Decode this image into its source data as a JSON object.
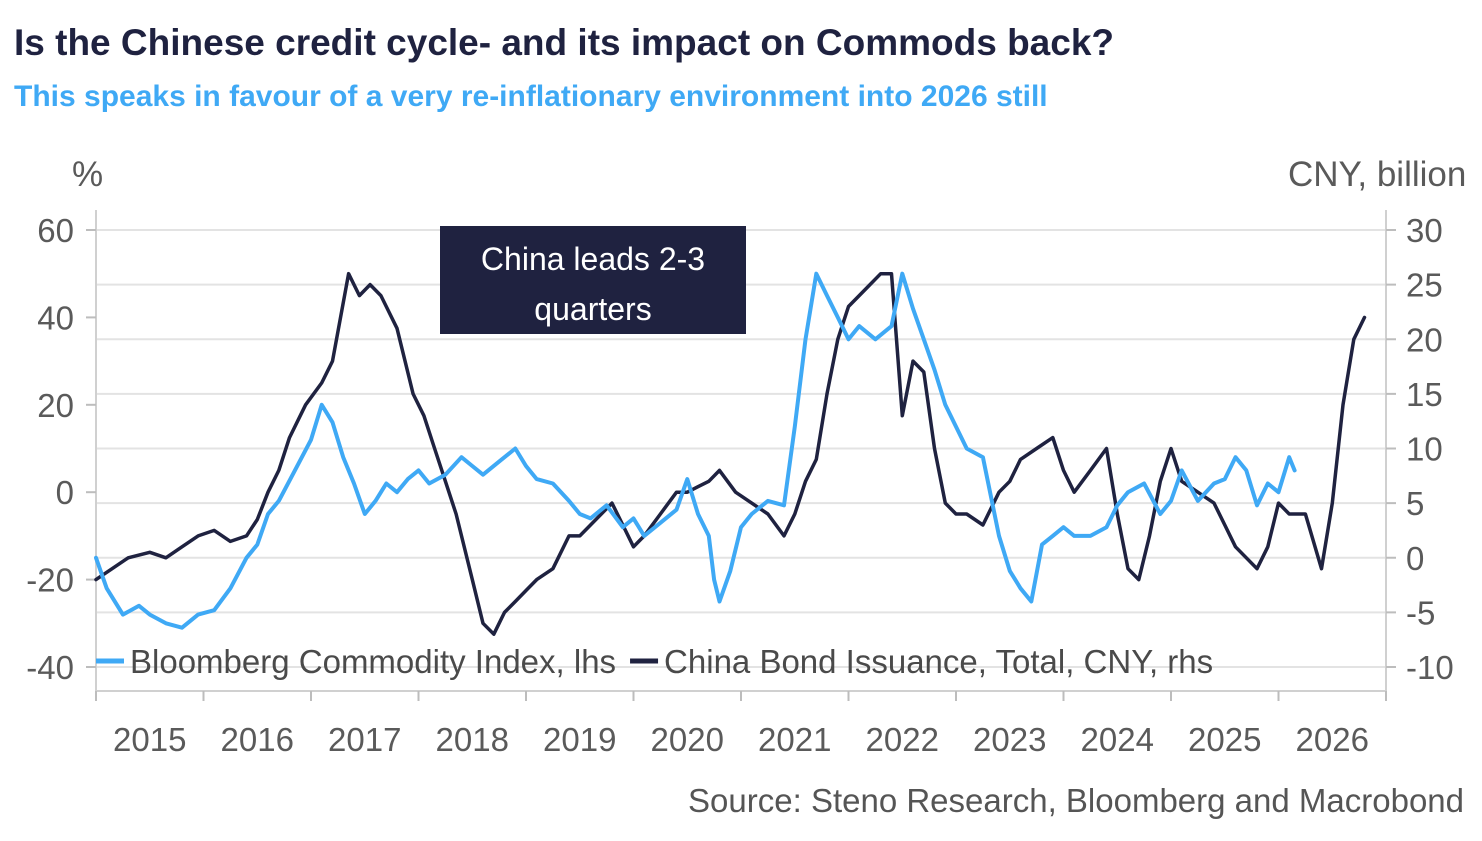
{
  "chart_data": {
    "type": "line",
    "title": "Is the Chinese credit cycle- and its impact on Commods back?",
    "subtitle": "This speaks in favour of a very re-inflationary environment into 2026 still",
    "source": "Source: Steno Research, Bloomberg and Macrobond",
    "y_left": {
      "unit": "%",
      "ylim": [
        -40,
        60
      ],
      "ticks": [
        "60",
        "40",
        "20",
        "0",
        "-20",
        "-40"
      ],
      "tick_values": [
        60,
        40,
        20,
        0,
        -20,
        -40
      ]
    },
    "y_right": {
      "unit": "CNY, billion",
      "ylim": [
        -10,
        30
      ],
      "ticks": [
        "30",
        "25",
        "20",
        "15",
        "10",
        "5",
        "0",
        "-5",
        "-10"
      ],
      "tick_values": [
        30,
        25,
        20,
        15,
        10,
        5,
        0,
        -5,
        -10
      ]
    },
    "x_axis": {
      "xlim": [
        2014.5,
        2026.5
      ],
      "ticks": [
        "2015",
        "2016",
        "2017",
        "2018",
        "2019",
        "2020",
        "2021",
        "2022",
        "2023",
        "2024",
        "2025",
        "2026"
      ]
    },
    "grid": true,
    "legend_position": "bottom",
    "annotation": {
      "line1": "China leads 2-3",
      "line2": "quarters"
    },
    "series": [
      {
        "name": "Bloomberg Commodity Index, lhs",
        "axis": "left",
        "color": "#3fa9f5",
        "x": [
          2014.5,
          2014.6,
          2014.75,
          2014.9,
          2015.0,
          2015.15,
          2015.3,
          2015.45,
          2015.6,
          2015.75,
          2015.9,
          2016.0,
          2016.1,
          2016.2,
          2016.35,
          2016.5,
          2016.6,
          2016.7,
          2016.8,
          2016.9,
          2017.0,
          2017.1,
          2017.2,
          2017.3,
          2017.4,
          2017.5,
          2017.6,
          2017.75,
          2017.9,
          2018.0,
          2018.1,
          2018.25,
          2018.4,
          2018.5,
          2018.6,
          2018.75,
          2018.9,
          2019.0,
          2019.1,
          2019.25,
          2019.4,
          2019.5,
          2019.6,
          2019.75,
          2019.9,
          2020.0,
          2020.1,
          2020.2,
          2020.25,
          2020.3,
          2020.4,
          2020.5,
          2020.6,
          2020.75,
          2020.9,
          2021.0,
          2021.1,
          2021.2,
          2021.3,
          2021.4,
          2021.5,
          2021.6,
          2021.75,
          2021.9,
          2022.0,
          2022.1,
          2022.2,
          2022.3,
          2022.4,
          2022.5,
          2022.6,
          2022.75,
          2022.9,
          2023.0,
          2023.1,
          2023.2,
          2023.3,
          2023.4,
          2023.5,
          2023.6,
          2023.75,
          2023.9,
          2024.0,
          2024.1,
          2024.25,
          2024.4,
          2024.5,
          2024.6,
          2024.75,
          2024.9,
          2025.0,
          2025.1,
          2025.2,
          2025.3,
          2025.4,
          2025.5,
          2025.6,
          2025.65
        ],
        "values": [
          -15,
          -22,
          -28,
          -26,
          -28,
          -30,
          -31,
          -28,
          -27,
          -22,
          -15,
          -12,
          -5,
          -2,
          5,
          12,
          20,
          16,
          8,
          2,
          -5,
          -2,
          2,
          0,
          3,
          5,
          2,
          4,
          8,
          6,
          4,
          7,
          10,
          6,
          3,
          2,
          -2,
          -5,
          -6,
          -3,
          -8,
          -6,
          -10,
          -7,
          -4,
          3,
          -5,
          -10,
          -20,
          -25,
          -18,
          -8,
          -5,
          -2,
          -3,
          15,
          35,
          50,
          45,
          40,
          35,
          38,
          35,
          38,
          50,
          42,
          35,
          28,
          20,
          15,
          10,
          8,
          -10,
          -18,
          -22,
          -25,
          -12,
          -10,
          -8,
          -10,
          -10,
          -8,
          -3,
          0,
          2,
          -5,
          -2,
          5,
          -2,
          2,
          3,
          8,
          5,
          -3,
          2,
          0,
          8,
          5
        ]
      },
      {
        "name": "China Bond Issuance, Total, CNY, rhs",
        "axis": "right",
        "color": "#1f2240",
        "x": [
          2014.5,
          2014.65,
          2014.8,
          2015.0,
          2015.15,
          2015.3,
          2015.45,
          2015.6,
          2015.75,
          2015.9,
          2016.0,
          2016.1,
          2016.2,
          2016.3,
          2016.45,
          2016.6,
          2016.7,
          2016.85,
          2016.95,
          2017.05,
          2017.15,
          2017.3,
          2017.45,
          2017.55,
          2017.65,
          2017.75,
          2017.85,
          2018.0,
          2018.1,
          2018.2,
          2018.3,
          2018.4,
          2018.5,
          2018.6,
          2018.75,
          2018.9,
          2019.0,
          2019.1,
          2019.2,
          2019.3,
          2019.4,
          2019.5,
          2019.6,
          2019.75,
          2019.9,
          2020.0,
          2020.1,
          2020.2,
          2020.3,
          2020.45,
          2020.6,
          2020.75,
          2020.9,
          2021.0,
          2021.1,
          2021.2,
          2021.3,
          2021.4,
          2021.5,
          2021.6,
          2021.7,
          2021.8,
          2021.9,
          2022.0,
          2022.1,
          2022.2,
          2022.3,
          2022.4,
          2022.5,
          2022.6,
          2022.75,
          2022.9,
          2023.0,
          2023.1,
          2023.25,
          2023.4,
          2023.5,
          2023.6,
          2023.75,
          2023.9,
          2024.0,
          2024.1,
          2024.2,
          2024.3,
          2024.4,
          2024.5,
          2024.6,
          2024.75,
          2024.9,
          2025.0,
          2025.1,
          2025.2,
          2025.3,
          2025.4,
          2025.5,
          2025.6,
          2025.75,
          2025.9,
          2026.0,
          2026.1,
          2026.2,
          2026.3
        ],
        "values": [
          -2,
          -1,
          0,
          0.5,
          0,
          1,
          2,
          2.5,
          1.5,
          2,
          3.5,
          6,
          8,
          11,
          14,
          16,
          18,
          26,
          24,
          25,
          24,
          21,
          15,
          13,
          10,
          7,
          4,
          -2,
          -6,
          -7,
          -5,
          -4,
          -3,
          -2,
          -1,
          2,
          2,
          3,
          4,
          5,
          3,
          1,
          2,
          4,
          6,
          6,
          6.5,
          7,
          8,
          6,
          5,
          4,
          2,
          4,
          7,
          9,
          15,
          20,
          23,
          24,
          25,
          26,
          26,
          13,
          18,
          17,
          10,
          5,
          4,
          4,
          3,
          6,
          7,
          9,
          10,
          11,
          8,
          6,
          8,
          10,
          4,
          -1,
          -2,
          2,
          7,
          10,
          7,
          6,
          5,
          3,
          1,
          0,
          -1,
          1,
          5,
          4,
          4,
          -1,
          5,
          14,
          20,
          22
        ]
      }
    ]
  }
}
